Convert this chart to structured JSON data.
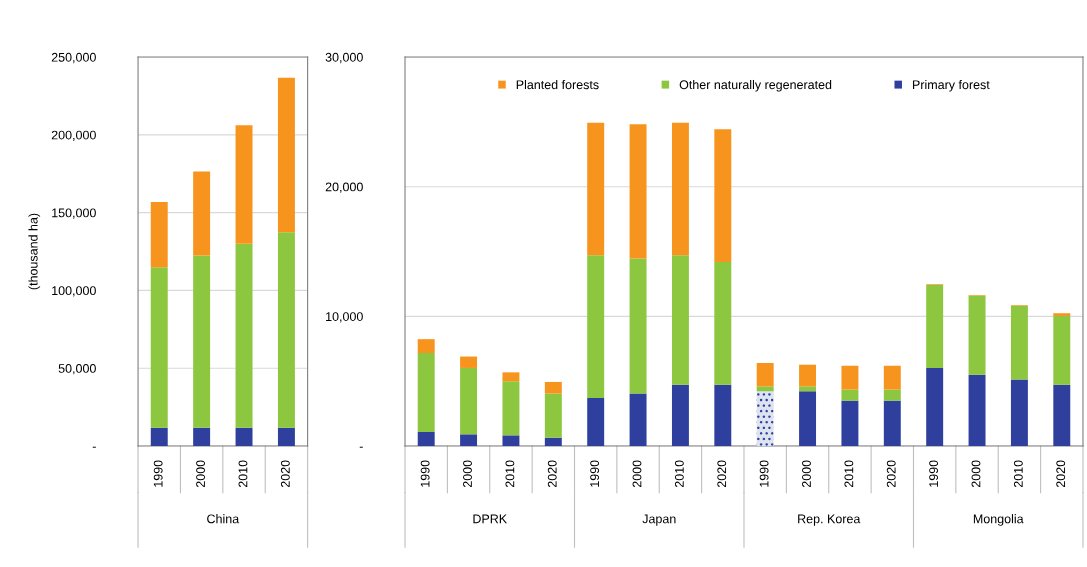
{
  "chart_data": [
    {
      "type": "bar",
      "stacked": true,
      "ylabel": "(thousand ha)",
      "categories": [
        "1990",
        "2000",
        "2010",
        "2020"
      ],
      "annotations": [
        "China"
      ],
      "ylim": [
        0,
        250000
      ],
      "yticks": [
        {
          "value": 0,
          "label": "-"
        },
        {
          "value": 50000,
          "label": "50,000"
        },
        {
          "value": 100000,
          "label": "100,000"
        },
        {
          "value": 150000,
          "label": "150,000"
        },
        {
          "value": 200000,
          "label": "200,000"
        },
        {
          "value": 250000,
          "label": "250,000"
        }
      ],
      "grid": "y",
      "legend": false,
      "series": [
        {
          "color": "#2e3f9e",
          "values": [
            11800,
            11800,
            11800,
            11800
          ]
        },
        {
          "color": "#8dc63f",
          "values": [
            103100,
            110600,
            118200,
            125600
          ]
        },
        {
          "color": "#f7941d",
          "values": [
            41900,
            54100,
            76200,
            99300
          ]
        }
      ]
    },
    {
      "type": "bar",
      "stacked": true,
      "categories": [
        "1990",
        "2000",
        "2010",
        "2020",
        "1990",
        "2000",
        "2010",
        "2020",
        "1990",
        "2000",
        "2010",
        "2020",
        "1990",
        "2000",
        "2010",
        "2020"
      ],
      "annotations": [
        "DPRK",
        "Japan",
        "Rep. Korea",
        "Mongolia"
      ],
      "ylim": [
        0,
        30000
      ],
      "yticks": [
        {
          "value": 0,
          "label": "-"
        },
        {
          "value": 10000,
          "label": "10,000"
        },
        {
          "value": 20000,
          "label": "20,000"
        },
        {
          "value": 30000,
          "label": "30,000"
        }
      ],
      "grid": "y",
      "legend": "top",
      "series": [
        {
          "name": "Primary forest",
          "color": "#2e3f9e",
          "colors": [
            "#2e3f9e",
            "#2e3f9e",
            "#2e3f9e",
            "#2e3f9e",
            "#2e3f9e",
            "#2e3f9e",
            "#2e3f9e",
            "#2e3f9e",
            "#dde3ef",
            "#2e3f9e",
            "#2e3f9e",
            "#2e3f9e",
            "#2e3f9e",
            "#2e3f9e",
            "#2e3f9e",
            "#2e3f9e"
          ],
          "values": [
            1080,
            900,
            820,
            640,
            3710,
            4040,
            4730,
            4730,
            4220,
            4220,
            3500,
            3500,
            6020,
            5500,
            5120,
            4730
          ]
        },
        {
          "name": "Other naturally regenerated",
          "color": "#8dc63f",
          "values": [
            6090,
            5120,
            4170,
            3400,
            11000,
            10420,
            9980,
            9470,
            380,
            380,
            850,
            850,
            6420,
            6090,
            5700,
            5300
          ]
        },
        {
          "name": "Planted forests",
          "color": "#f7941d",
          "values": [
            1070,
            880,
            690,
            900,
            10230,
            10360,
            10230,
            10230,
            1800,
            1670,
            1840,
            1840,
            50,
            50,
            50,
            210
          ]
        }
      ]
    }
  ]
}
